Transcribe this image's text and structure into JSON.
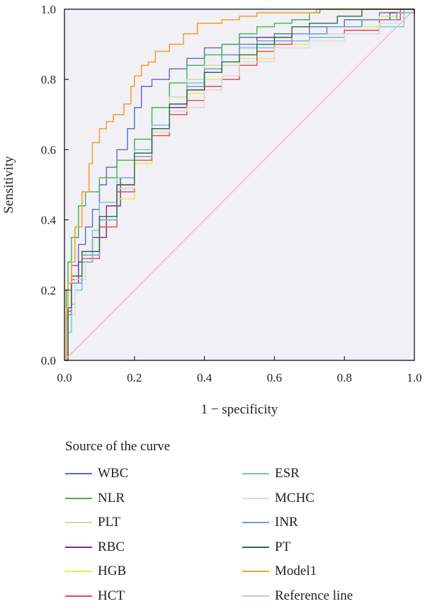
{
  "chart_data": {
    "type": "line",
    "xlabel": "1 − specificity",
    "ylabel": "Sensitivity",
    "xlim": [
      0,
      1
    ],
    "ylim": [
      0,
      1
    ],
    "xticks": [
      "0.0",
      "0.2",
      "0.4",
      "0.6",
      "0.8",
      "1.0"
    ],
    "yticks": [
      "0.0",
      "0.2",
      "0.4",
      "0.6",
      "0.8",
      "1.0"
    ],
    "grid": false,
    "plot_background": "#f1f0f5",
    "legend_title": "Source of the curve",
    "legend_placement": "bottom",
    "series": [
      {
        "name": "WBC",
        "color": "#5b6bc4",
        "points": [
          [
            0,
            0
          ],
          [
            0.005,
            0.12
          ],
          [
            0.01,
            0.2
          ],
          [
            0.02,
            0.27
          ],
          [
            0.04,
            0.33
          ],
          [
            0.06,
            0.38
          ],
          [
            0.08,
            0.43
          ],
          [
            0.1,
            0.5
          ],
          [
            0.12,
            0.55
          ],
          [
            0.15,
            0.6
          ],
          [
            0.18,
            0.66
          ],
          [
            0.2,
            0.72
          ],
          [
            0.22,
            0.78
          ],
          [
            0.25,
            0.8
          ],
          [
            0.3,
            0.83
          ],
          [
            0.35,
            0.86
          ],
          [
            0.4,
            0.89
          ],
          [
            0.45,
            0.9
          ],
          [
            0.5,
            0.92
          ],
          [
            0.6,
            0.93
          ],
          [
            0.7,
            0.95
          ],
          [
            0.8,
            0.97
          ],
          [
            0.9,
            0.99
          ],
          [
            0.96,
            1
          ],
          [
            1,
            1
          ]
        ]
      },
      {
        "name": "NLR",
        "color": "#3cb44b",
        "points": [
          [
            0,
            0
          ],
          [
            0.005,
            0.2
          ],
          [
            0.01,
            0.28
          ],
          [
            0.02,
            0.35
          ],
          [
            0.04,
            0.44
          ],
          [
            0.06,
            0.48
          ],
          [
            0.1,
            0.52
          ],
          [
            0.15,
            0.57
          ],
          [
            0.2,
            0.63
          ],
          [
            0.25,
            0.72
          ],
          [
            0.3,
            0.79
          ],
          [
            0.35,
            0.84
          ],
          [
            0.4,
            0.87
          ],
          [
            0.45,
            0.9
          ],
          [
            0.5,
            0.93
          ],
          [
            0.55,
            0.95
          ],
          [
            0.6,
            0.96
          ],
          [
            0.65,
            0.97
          ],
          [
            0.7,
            0.99
          ],
          [
            0.73,
            1
          ],
          [
            1,
            1
          ]
        ]
      },
      {
        "name": "PLT",
        "color": "#d7d4b2",
        "points": [
          [
            0,
            0
          ],
          [
            0.01,
            0.15
          ],
          [
            0.02,
            0.24
          ],
          [
            0.05,
            0.3
          ],
          [
            0.1,
            0.4
          ],
          [
            0.15,
            0.48
          ],
          [
            0.2,
            0.57
          ],
          [
            0.25,
            0.66
          ],
          [
            0.3,
            0.75
          ],
          [
            0.35,
            0.8
          ],
          [
            0.4,
            0.84
          ],
          [
            0.5,
            0.89
          ],
          [
            0.6,
            0.91
          ],
          [
            0.7,
            0.93
          ],
          [
            0.8,
            0.95
          ],
          [
            0.9,
            0.98
          ],
          [
            0.95,
            1
          ],
          [
            1,
            1
          ]
        ]
      },
      {
        "name": "RBC",
        "color": "#7b2d8b",
        "points": [
          [
            0,
            0
          ],
          [
            0.01,
            0.14
          ],
          [
            0.02,
            0.22
          ],
          [
            0.04,
            0.28
          ],
          [
            0.08,
            0.35
          ],
          [
            0.12,
            0.44
          ],
          [
            0.16,
            0.52
          ],
          [
            0.2,
            0.59
          ],
          [
            0.25,
            0.66
          ],
          [
            0.3,
            0.72
          ],
          [
            0.35,
            0.77
          ],
          [
            0.4,
            0.82
          ],
          [
            0.45,
            0.87
          ],
          [
            0.5,
            0.9
          ],
          [
            0.55,
            0.92
          ],
          [
            0.65,
            0.93
          ],
          [
            0.75,
            0.95
          ],
          [
            0.85,
            0.97
          ],
          [
            0.93,
            0.99
          ],
          [
            0.97,
            1
          ],
          [
            1,
            1
          ]
        ]
      },
      {
        "name": "HGB",
        "color": "#f3e84b",
        "points": [
          [
            0,
            0
          ],
          [
            0.01,
            0.14
          ],
          [
            0.02,
            0.22
          ],
          [
            0.05,
            0.29
          ],
          [
            0.1,
            0.38
          ],
          [
            0.15,
            0.46
          ],
          [
            0.2,
            0.56
          ],
          [
            0.25,
            0.64
          ],
          [
            0.3,
            0.71
          ],
          [
            0.35,
            0.76
          ],
          [
            0.4,
            0.8
          ],
          [
            0.5,
            0.86
          ],
          [
            0.6,
            0.9
          ],
          [
            0.7,
            0.92
          ],
          [
            0.8,
            0.95
          ],
          [
            0.9,
            0.98
          ],
          [
            0.96,
            1
          ],
          [
            1,
            1
          ]
        ]
      },
      {
        "name": "HCT",
        "color": "#e8474b",
        "points": [
          [
            0,
            0
          ],
          [
            0.01,
            0.14
          ],
          [
            0.02,
            0.23
          ],
          [
            0.05,
            0.29
          ],
          [
            0.1,
            0.38
          ],
          [
            0.15,
            0.48
          ],
          [
            0.2,
            0.57
          ],
          [
            0.25,
            0.64
          ],
          [
            0.3,
            0.7
          ],
          [
            0.35,
            0.74
          ],
          [
            0.4,
            0.78
          ],
          [
            0.45,
            0.8
          ],
          [
            0.5,
            0.84
          ],
          [
            0.55,
            0.88
          ],
          [
            0.6,
            0.9
          ],
          [
            0.65,
            0.91
          ],
          [
            0.7,
            0.92
          ],
          [
            0.8,
            0.94
          ],
          [
            0.9,
            0.97
          ],
          [
            0.96,
            1
          ],
          [
            1,
            1
          ]
        ]
      },
      {
        "name": "ESR",
        "color": "#6ec6d8",
        "points": [
          [
            0,
            0
          ],
          [
            0.01,
            0.08
          ],
          [
            0.02,
            0.16
          ],
          [
            0.03,
            0.2
          ],
          [
            0.05,
            0.28
          ],
          [
            0.08,
            0.37
          ],
          [
            0.1,
            0.45
          ],
          [
            0.15,
            0.52
          ],
          [
            0.2,
            0.6
          ],
          [
            0.25,
            0.67
          ],
          [
            0.3,
            0.73
          ],
          [
            0.35,
            0.79
          ],
          [
            0.4,
            0.83
          ],
          [
            0.45,
            0.87
          ],
          [
            0.5,
            0.89
          ],
          [
            0.6,
            0.91
          ],
          [
            0.7,
            0.92
          ],
          [
            0.8,
            0.93
          ],
          [
            0.9,
            0.95
          ],
          [
            0.97,
            1
          ],
          [
            1,
            1
          ]
        ]
      },
      {
        "name": "MCHC",
        "color": "#dadada",
        "points": [
          [
            0,
            0
          ],
          [
            0.01,
            0.13
          ],
          [
            0.03,
            0.23
          ],
          [
            0.06,
            0.31
          ],
          [
            0.1,
            0.4
          ],
          [
            0.15,
            0.49
          ],
          [
            0.2,
            0.58
          ],
          [
            0.25,
            0.65
          ],
          [
            0.3,
            0.71
          ],
          [
            0.35,
            0.72
          ],
          [
            0.4,
            0.77
          ],
          [
            0.45,
            0.81
          ],
          [
            0.5,
            0.85
          ],
          [
            0.6,
            0.89
          ],
          [
            0.7,
            0.91
          ],
          [
            0.8,
            0.93
          ],
          [
            0.9,
            0.96
          ],
          [
            0.95,
            0.99
          ],
          [
            1,
            1
          ]
        ]
      },
      {
        "name": "INR",
        "color": "#6f9fd6",
        "points": [
          [
            0,
            0
          ],
          [
            0.01,
            0.13
          ],
          [
            0.02,
            0.22
          ],
          [
            0.05,
            0.3
          ],
          [
            0.1,
            0.4
          ],
          [
            0.15,
            0.5
          ],
          [
            0.2,
            0.58
          ],
          [
            0.25,
            0.66
          ],
          [
            0.3,
            0.73
          ],
          [
            0.35,
            0.78
          ],
          [
            0.4,
            0.83
          ],
          [
            0.45,
            0.87
          ],
          [
            0.5,
            0.9
          ],
          [
            0.55,
            0.91
          ],
          [
            0.65,
            0.93
          ],
          [
            0.75,
            0.95
          ],
          [
            0.85,
            0.97
          ],
          [
            0.95,
            0.99
          ],
          [
            1,
            1
          ]
        ]
      },
      {
        "name": "PT",
        "color": "#2e6b3c",
        "points": [
          [
            0,
            0
          ],
          [
            0.01,
            0.15
          ],
          [
            0.02,
            0.24
          ],
          [
            0.05,
            0.31
          ],
          [
            0.1,
            0.41
          ],
          [
            0.15,
            0.5
          ],
          [
            0.2,
            0.59
          ],
          [
            0.25,
            0.66
          ],
          [
            0.3,
            0.73
          ],
          [
            0.35,
            0.77
          ],
          [
            0.4,
            0.82
          ],
          [
            0.45,
            0.85
          ],
          [
            0.5,
            0.87
          ],
          [
            0.55,
            0.9
          ],
          [
            0.6,
            0.92
          ],
          [
            0.65,
            0.95
          ],
          [
            0.7,
            0.96
          ],
          [
            0.78,
            0.98
          ],
          [
            0.85,
            1
          ],
          [
            1,
            1
          ]
        ]
      },
      {
        "name": "Model1",
        "color": "#f5a133",
        "points": [
          [
            0,
            0
          ],
          [
            0.005,
            0.15
          ],
          [
            0.01,
            0.22
          ],
          [
            0.02,
            0.28
          ],
          [
            0.03,
            0.38
          ],
          [
            0.05,
            0.48
          ],
          [
            0.07,
            0.56
          ],
          [
            0.08,
            0.62
          ],
          [
            0.1,
            0.66
          ],
          [
            0.12,
            0.68
          ],
          [
            0.14,
            0.7
          ],
          [
            0.17,
            0.73
          ],
          [
            0.19,
            0.78
          ],
          [
            0.2,
            0.81
          ],
          [
            0.22,
            0.84
          ],
          [
            0.24,
            0.85
          ],
          [
            0.26,
            0.88
          ],
          [
            0.3,
            0.9
          ],
          [
            0.34,
            0.93
          ],
          [
            0.38,
            0.96
          ],
          [
            0.45,
            0.97
          ],
          [
            0.5,
            0.98
          ],
          [
            0.55,
            0.99
          ],
          [
            0.65,
            0.99
          ],
          [
            0.72,
            1
          ],
          [
            1,
            1
          ]
        ]
      },
      {
        "name": "Reference line",
        "color": "#e6b3d6",
        "points": [
          [
            0,
            0
          ],
          [
            1,
            1
          ]
        ]
      }
    ]
  }
}
